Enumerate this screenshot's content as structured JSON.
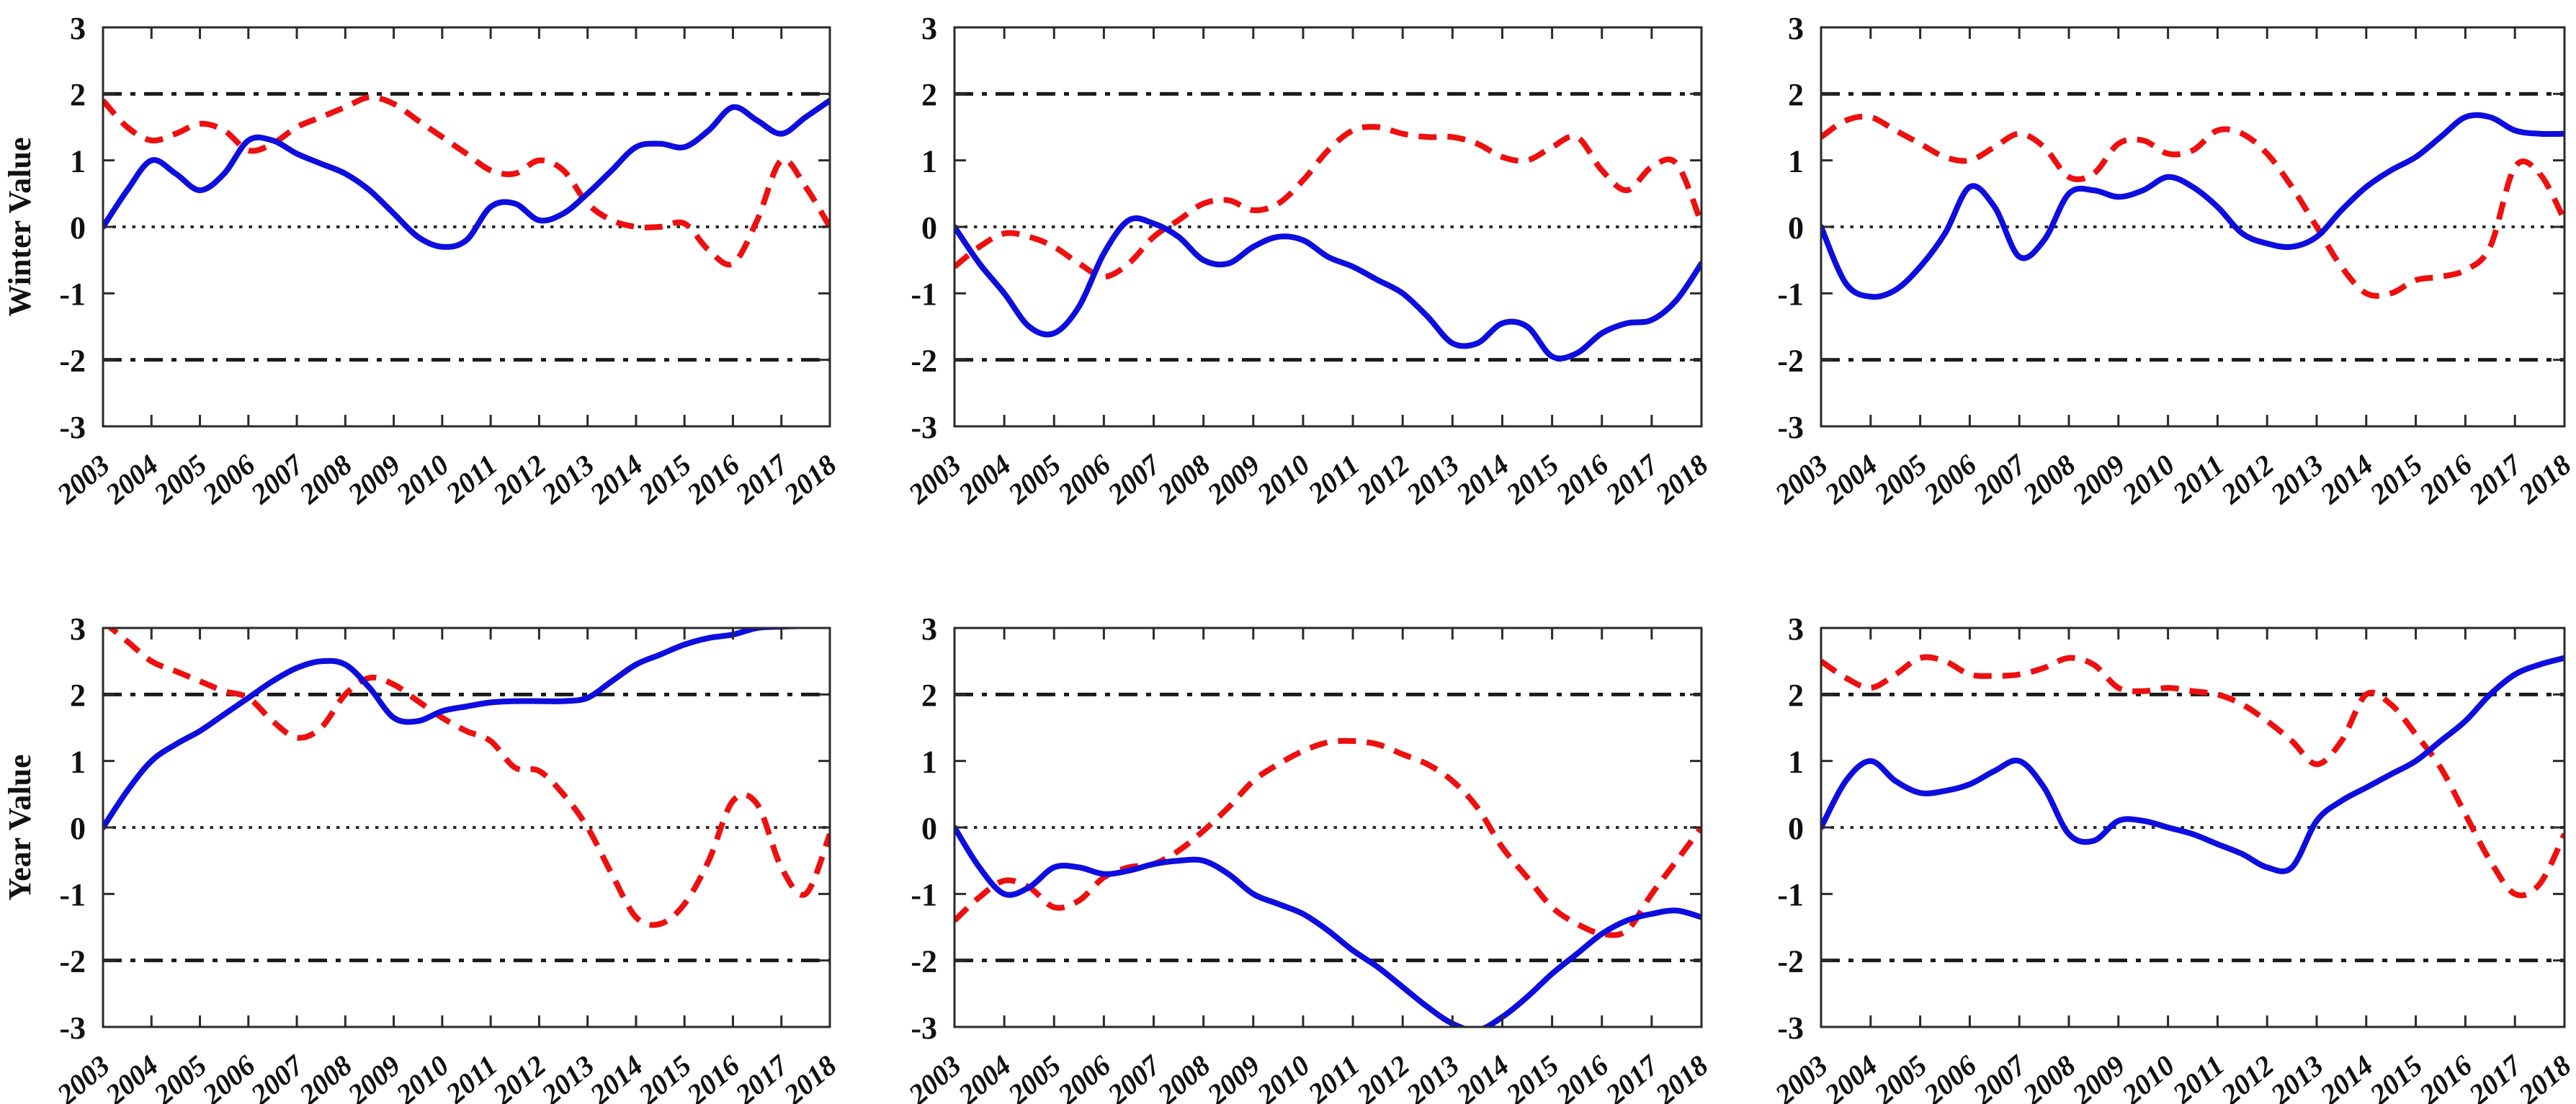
{
  "page": {
    "background": "#ffffff",
    "description_labels": {
      "top_row_ylabel": "Winter Value",
      "bottom_row_ylabel": "Year Value"
    }
  },
  "colors": {
    "blue_series": "#0d0de0",
    "red_series": "#ee0f0f",
    "frame": "#2a2a2a",
    "ref_line": "#1b1b1b",
    "zero_line": "#2b2b2b",
    "tick_text": "#111111"
  },
  "axes": {
    "ylim": [
      -3,
      3
    ],
    "y_tick_values": [
      3,
      2,
      1,
      0,
      -1,
      -2,
      -3
    ],
    "y_tick_labels": [
      "3",
      "2",
      "1",
      "0",
      "-1",
      "-2",
      "-3"
    ],
    "x_start": 2003,
    "x_end": 2018,
    "x_tick_values": [
      2003,
      2004,
      2005,
      2006,
      2007,
      2008,
      2009,
      2010,
      2011,
      2012,
      2013,
      2014,
      2015,
      2016,
      2017,
      2018
    ],
    "x_tick_labels": [
      "2003",
      "2004",
      "2005",
      "2006",
      "2007",
      "2008",
      "2009",
      "2010",
      "2011",
      "2012",
      "2013",
      "2014",
      "2015",
      "2016",
      "2017",
      "2018"
    ],
    "ref_lines": [
      2,
      -2
    ],
    "zero_line": 0,
    "grid": false,
    "legend": "none"
  },
  "chart_data": [
    {
      "id": "winter-left",
      "type": "line",
      "title": "",
      "ylabel": "Winter Value",
      "xlabel": "",
      "ylim": [
        -3,
        3
      ],
      "x_start": 2003,
      "x_step": 0.5,
      "series": [
        {
          "name": "blue-solid",
          "style": "solid",
          "color_key": "blue_series",
          "values": [
            0.0,
            0.55,
            1.0,
            0.8,
            0.55,
            0.8,
            1.3,
            1.3,
            1.1,
            0.95,
            0.8,
            0.55,
            0.2,
            -0.15,
            -0.3,
            -0.2,
            0.3,
            0.35,
            0.1,
            0.2,
            0.5,
            0.85,
            1.2,
            1.25,
            1.2,
            1.45,
            1.8,
            1.6,
            1.4,
            1.65,
            1.9
          ]
        },
        {
          "name": "red-dashed",
          "style": "dashed",
          "color_key": "red_series",
          "values": [
            1.9,
            1.5,
            1.3,
            1.4,
            1.55,
            1.45,
            1.15,
            1.25,
            1.5,
            1.65,
            1.8,
            1.95,
            1.85,
            1.6,
            1.35,
            1.1,
            0.85,
            0.8,
            1.0,
            0.85,
            0.35,
            0.1,
            0.0,
            0.0,
            0.05,
            -0.35,
            -0.55,
            0.1,
            1.0,
            0.6,
            0.0
          ]
        }
      ]
    },
    {
      "id": "winter-middle",
      "type": "line",
      "title": "",
      "ylabel": "",
      "xlabel": "",
      "ylim": [
        -3,
        3
      ],
      "x_start": 2003,
      "x_step": 0.5,
      "series": [
        {
          "name": "blue-solid",
          "style": "solid",
          "color_key": "blue_series",
          "values": [
            0.0,
            -0.55,
            -1.0,
            -1.5,
            -1.6,
            -1.2,
            -0.4,
            0.1,
            0.05,
            -0.15,
            -0.5,
            -0.55,
            -0.3,
            -0.15,
            -0.2,
            -0.45,
            -0.6,
            -0.8,
            -1.0,
            -1.35,
            -1.75,
            -1.75,
            -1.45,
            -1.5,
            -1.95,
            -1.9,
            -1.6,
            -1.45,
            -1.4,
            -1.1,
            -0.55
          ]
        },
        {
          "name": "red-dashed",
          "style": "dashed",
          "color_key": "red_series",
          "values": [
            -0.6,
            -0.3,
            -0.1,
            -0.15,
            -0.3,
            -0.55,
            -0.75,
            -0.55,
            -0.15,
            0.1,
            0.35,
            0.4,
            0.25,
            0.35,
            0.7,
            1.15,
            1.45,
            1.5,
            1.4,
            1.35,
            1.35,
            1.25,
            1.05,
            1.0,
            1.2,
            1.35,
            0.85,
            0.55,
            0.9,
            0.95,
            0.05
          ]
        }
      ]
    },
    {
      "id": "winter-right",
      "type": "line",
      "title": "",
      "ylabel": "",
      "xlabel": "",
      "ylim": [
        -3,
        3
      ],
      "x_start": 2003,
      "x_step": 0.5,
      "series": [
        {
          "name": "blue-solid",
          "style": "solid",
          "color_key": "blue_series",
          "values": [
            0.0,
            -0.85,
            -1.05,
            -0.95,
            -0.6,
            -0.1,
            0.6,
            0.3,
            -0.45,
            -0.2,
            0.5,
            0.55,
            0.45,
            0.55,
            0.75,
            0.6,
            0.3,
            -0.1,
            -0.25,
            -0.3,
            -0.15,
            0.25,
            0.6,
            0.85,
            1.05,
            1.35,
            1.65,
            1.65,
            1.45,
            1.4,
            1.4
          ]
        },
        {
          "name": "red-dashed",
          "style": "dashed",
          "color_key": "red_series",
          "values": [
            1.35,
            1.6,
            1.65,
            1.45,
            1.25,
            1.05,
            1.0,
            1.2,
            1.4,
            1.2,
            0.75,
            0.8,
            1.25,
            1.3,
            1.1,
            1.15,
            1.45,
            1.4,
            1.1,
            0.6,
            0.0,
            -0.6,
            -1.0,
            -1.0,
            -0.8,
            -0.75,
            -0.65,
            -0.3,
            0.9,
            0.8,
            0.1
          ]
        }
      ]
    },
    {
      "id": "year-left",
      "type": "line",
      "title": "",
      "ylabel": "Year Value",
      "xlabel": "",
      "ylim": [
        -3,
        3
      ],
      "x_start": 2003,
      "x_step": 0.5,
      "series": [
        {
          "name": "blue-solid",
          "style": "solid",
          "color_key": "blue_series",
          "values": [
            0.0,
            0.55,
            1.0,
            1.25,
            1.45,
            1.7,
            1.95,
            2.2,
            2.4,
            2.5,
            2.45,
            2.1,
            1.65,
            1.6,
            1.75,
            1.82,
            1.88,
            1.9,
            1.9,
            1.9,
            1.95,
            2.2,
            2.45,
            2.6,
            2.75,
            2.85,
            2.9,
            3.0,
            3.02,
            3.03,
            3.03
          ]
        },
        {
          "name": "red-dashed",
          "style": "dashed",
          "color_key": "red_series",
          "values": [
            3.1,
            2.8,
            2.5,
            2.35,
            2.2,
            2.05,
            1.95,
            1.6,
            1.35,
            1.5,
            2.0,
            2.25,
            2.15,
            1.9,
            1.65,
            1.45,
            1.3,
            0.9,
            0.85,
            0.5,
            0.0,
            -0.7,
            -1.35,
            -1.45,
            -1.15,
            -0.5,
            0.4,
            0.35,
            -0.6,
            -1.0,
            -0.1
          ]
        }
      ]
    },
    {
      "id": "year-middle",
      "type": "line",
      "title": "",
      "ylabel": "",
      "xlabel": "",
      "ylim": [
        -3,
        3
      ],
      "x_start": 2003,
      "x_step": 0.5,
      "series": [
        {
          "name": "blue-solid",
          "style": "solid",
          "color_key": "blue_series",
          "values": [
            0.0,
            -0.6,
            -1.0,
            -0.9,
            -0.6,
            -0.6,
            -0.7,
            -0.65,
            -0.55,
            -0.5,
            -0.5,
            -0.7,
            -1.0,
            -1.15,
            -1.3,
            -1.55,
            -1.85,
            -2.1,
            -2.4,
            -2.7,
            -2.95,
            -3.05,
            -2.85,
            -2.55,
            -2.2,
            -1.9,
            -1.6,
            -1.4,
            -1.3,
            -1.25,
            -1.35
          ]
        },
        {
          "name": "red-dashed",
          "style": "dashed",
          "color_key": "red_series",
          "values": [
            -1.4,
            -1.05,
            -0.8,
            -0.9,
            -1.2,
            -1.1,
            -0.75,
            -0.6,
            -0.55,
            -0.35,
            -0.05,
            0.3,
            0.7,
            0.95,
            1.15,
            1.28,
            1.3,
            1.25,
            1.1,
            0.95,
            0.7,
            0.3,
            -0.3,
            -0.75,
            -1.2,
            -1.45,
            -1.6,
            -1.55,
            -1.0,
            -0.5,
            0.0
          ]
        }
      ]
    },
    {
      "id": "year-right",
      "type": "line",
      "title": "",
      "ylabel": "",
      "xlabel": "",
      "ylim": [
        -3,
        3
      ],
      "x_start": 2003,
      "x_step": 0.5,
      "series": [
        {
          "name": "blue-solid",
          "style": "solid",
          "color_key": "blue_series",
          "values": [
            0.0,
            0.7,
            1.0,
            0.7,
            0.52,
            0.55,
            0.65,
            0.85,
            1.0,
            0.6,
            -0.1,
            -0.2,
            0.1,
            0.1,
            0.0,
            -0.1,
            -0.25,
            -0.4,
            -0.6,
            -0.6,
            0.1,
            0.4,
            0.6,
            0.8,
            1.0,
            1.3,
            1.6,
            2.0,
            2.3,
            2.45,
            2.55
          ]
        },
        {
          "name": "red-dashed",
          "style": "dashed",
          "color_key": "red_series",
          "values": [
            2.5,
            2.25,
            2.1,
            2.3,
            2.55,
            2.5,
            2.3,
            2.28,
            2.3,
            2.4,
            2.55,
            2.45,
            2.1,
            2.05,
            2.1,
            2.05,
            2.0,
            1.85,
            1.6,
            1.3,
            0.95,
            1.3,
            2.0,
            1.85,
            1.4,
            0.9,
            0.2,
            -0.5,
            -1.0,
            -0.85,
            -0.1
          ]
        }
      ]
    }
  ]
}
